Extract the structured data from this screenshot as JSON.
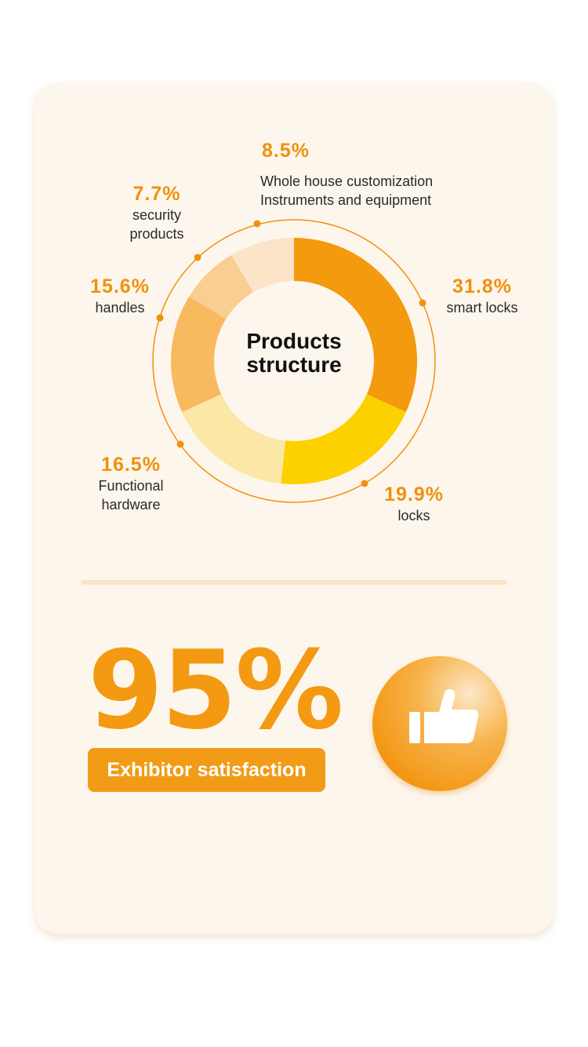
{
  "chart_data": {
    "type": "pie",
    "title": "Products structure",
    "slices": [
      {
        "label": "smart locks",
        "value": 31.8,
        "pct_text": "31.8%",
        "color": "#f39a0e"
      },
      {
        "label": "locks",
        "value": 19.9,
        "pct_text": "19.9%",
        "color": "#fdd000"
      },
      {
        "label": "Functional hardware",
        "value": 16.5,
        "pct_text": "16.5%",
        "color": "#fbe7a6"
      },
      {
        "label": "handles",
        "value": 15.6,
        "pct_text": "15.6%",
        "color": "#f9b95e"
      },
      {
        "label": "security products",
        "value": 7.7,
        "pct_text": "7.7%",
        "color": "#facd90"
      },
      {
        "label": "Whole house customization Instruments and equipment",
        "value": 8.5,
        "pct_text": "8.5%",
        "color": "#fce4c8"
      }
    ],
    "accent_color": "#f0900f"
  },
  "labels": {
    "center_line1": "Products",
    "center_line2": "structure",
    "smart_locks": {
      "pct": "31.8%",
      "name": "smart locks"
    },
    "locks": {
      "pct": "19.9%",
      "name": "locks"
    },
    "functional": {
      "pct": "16.5%",
      "name1": "Functional",
      "name2": "hardware"
    },
    "handles": {
      "pct": "15.6%",
      "name": "handles"
    },
    "security": {
      "pct": "7.7%",
      "name1": "security",
      "name2": "products"
    },
    "whole_house": {
      "pct": "8.5%",
      "name1": "Whole house customization",
      "name2": "Instruments and equipment"
    }
  },
  "satisfaction": {
    "value": "95%",
    "label": "Exhibitor satisfaction",
    "icon": "thumbs-up-icon"
  }
}
